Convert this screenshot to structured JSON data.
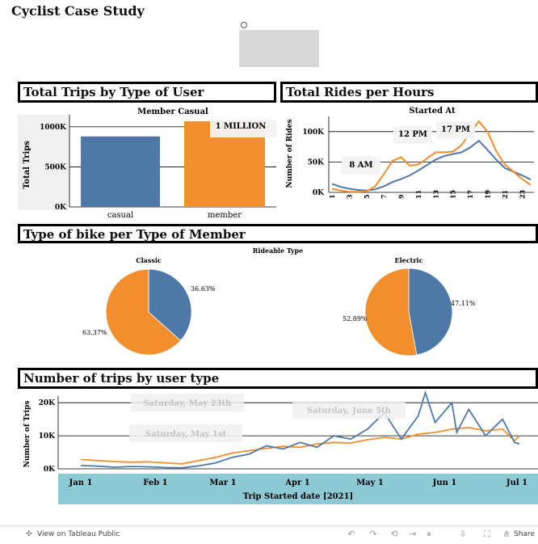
{
  "page_title": "Cyclist Case Study",
  "panels": {
    "trips_by_user": "Total Trips by Type of User",
    "rides_per_hour": "Total Rides per Hours",
    "bike_type": "Type of bike per Type of Member",
    "trips_by_date": "Number of trips by user type"
  },
  "colors": {
    "casual": "#4e79a7",
    "member": "#f28e2b"
  },
  "footer": {
    "view_label": "View on Tableau Public",
    "share_label": "Share"
  },
  "chart_data": [
    {
      "type": "bar",
      "header": "Member Casual",
      "ylabel": "Total Trips",
      "categories": [
        "casual",
        "member"
      ],
      "values": [
        880000,
        1070000
      ],
      "ylim": [
        0,
        1150000
      ],
      "yticks": [
        "0K",
        "500K",
        "1000K"
      ],
      "ytick_values": [
        0,
        500000,
        1000000
      ],
      "annotation": "1 MILLION"
    },
    {
      "type": "line",
      "header": "Started At",
      "ylabel": "Number of Rides",
      "x": [
        0,
        1,
        2,
        3,
        4,
        5,
        6,
        7,
        8,
        9,
        10,
        11,
        12,
        13,
        14,
        15,
        16,
        17,
        18,
        19,
        20,
        21,
        22,
        23
      ],
      "xticks": [
        "1",
        "3",
        "5",
        "7",
        "9",
        "11",
        "13",
        "15",
        "17",
        "19",
        "21",
        "23"
      ],
      "ylim": [
        0,
        125000
      ],
      "yticks": [
        "0K",
        "50K",
        "100K"
      ],
      "ytick_values": [
        0,
        50000,
        100000
      ],
      "series": [
        {
          "name": "casual",
          "values": [
            14000,
            9000,
            6000,
            4000,
            3000,
            5000,
            10000,
            17000,
            22000,
            28000,
            36000,
            45000,
            54000,
            60000,
            63000,
            66000,
            74000,
            85000,
            70000,
            54000,
            40000,
            34000,
            28000,
            21000
          ]
        },
        {
          "name": "member",
          "values": [
            6000,
            3000,
            1000,
            1000,
            2000,
            10000,
            30000,
            52000,
            58000,
            44000,
            46000,
            56000,
            66000,
            66000,
            67000,
            78000,
            98000,
            117000,
            100000,
            68000,
            46000,
            34000,
            22000,
            12000
          ]
        }
      ],
      "annotations": [
        "8 AM",
        "12 PM",
        "17 PM"
      ]
    },
    {
      "type": "pie",
      "header": "Rideable Type",
      "title": "Classic",
      "labels": [
        "casual",
        "member"
      ],
      "values": [
        36.63,
        63.37
      ],
      "value_labels": [
        "36.63%",
        "63.37%"
      ]
    },
    {
      "type": "pie",
      "header": "Rideable Type",
      "title": "Electric",
      "labels": [
        "casual",
        "member"
      ],
      "values": [
        47.11,
        52.89
      ],
      "value_labels": [
        "47.11%",
        "52.89%"
      ]
    },
    {
      "type": "line",
      "ylabel": "Number of Trips",
      "xlabel": "Trip Started date [2021]",
      "xticks": [
        "Jan 1",
        "Feb 1",
        "Mar 1",
        "Apr 1",
        "May 1",
        "Jun 1",
        "Jul 1"
      ],
      "ylim": [
        0,
        22000
      ],
      "yticks": [
        "0K",
        "10K",
        "20K"
      ],
      "ytick_values": [
        0,
        10000,
        20000
      ],
      "series": [
        {
          "name": "casual",
          "days_from_jan1": [
            0,
            7,
            14,
            21,
            28,
            35,
            42,
            49,
            56,
            63,
            70,
            77,
            84,
            91,
            98,
            105,
            112,
            119,
            126,
            133,
            140,
            143,
            147,
            154,
            156,
            161,
            168,
            175,
            180,
            182
          ],
          "values": [
            1000,
            800,
            500,
            700,
            600,
            400,
            300,
            900,
            1800,
            3500,
            4500,
            7000,
            6000,
            8000,
            6500,
            10000,
            9000,
            12000,
            17000,
            9000,
            16000,
            23000,
            14000,
            20000,
            11000,
            18000,
            10000,
            15000,
            8000,
            7500
          ]
        },
        {
          "name": "member",
          "days_from_jan1": [
            0,
            7,
            14,
            21,
            28,
            35,
            42,
            49,
            56,
            63,
            70,
            77,
            84,
            91,
            98,
            105,
            112,
            119,
            126,
            133,
            140,
            147,
            154,
            161,
            168,
            175,
            180,
            182
          ],
          "values": [
            2800,
            2500,
            2200,
            2000,
            2100,
            1800,
            1500,
            2500,
            3500,
            4800,
            5500,
            6200,
            6800,
            6500,
            7500,
            8000,
            7800,
            8800,
            9500,
            9000,
            10500,
            11000,
            12000,
            12500,
            11500,
            12000,
            8500,
            10000
          ]
        }
      ],
      "annotations": [
        "Saturday, May 23th",
        "Saturday,  June 5th",
        "Saturday, May 1st"
      ]
    }
  ]
}
